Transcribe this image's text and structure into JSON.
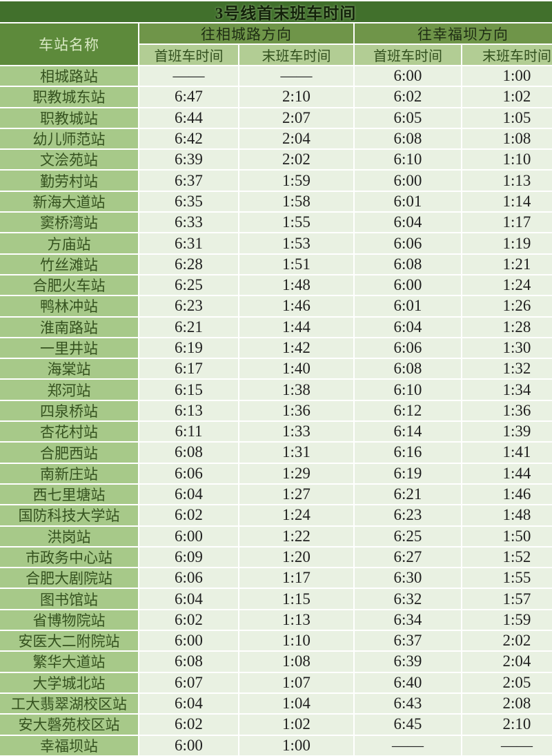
{
  "title": "3号线首末班车时间",
  "header": {
    "station_col": "车站名称",
    "directions": [
      {
        "label": "往相城路方向",
        "sub": [
          "首班车时间",
          "末班车时间"
        ]
      },
      {
        "label": "往幸福坝方向",
        "sub": [
          "首班车时间",
          "末班车时间"
        ]
      }
    ]
  },
  "colors": {
    "title_bg": "#41702c",
    "group_header_bg": "#6f9549",
    "corner_bg": "#5d8a3b",
    "subheader_bg": "#b2cd94",
    "station_bg": "#a7c989",
    "data_bg": "#e9f1e2",
    "grid_line": "#ffffff"
  },
  "rows": [
    {
      "station": "相城路站",
      "times": [
        "——",
        "——",
        "6:00",
        "1:00"
      ]
    },
    {
      "station": "职教城东站",
      "times": [
        "6:47",
        "2:10",
        "6:02",
        "1:02"
      ]
    },
    {
      "station": "职教城站",
      "times": [
        "6:44",
        "2:07",
        "6:05",
        "1:05"
      ]
    },
    {
      "station": "幼儿师范站",
      "times": [
        "6:42",
        "2:04",
        "6:08",
        "1:08"
      ]
    },
    {
      "station": "文浍苑站",
      "times": [
        "6:39",
        "2:02",
        "6:10",
        "1:10"
      ]
    },
    {
      "station": "勤劳村站",
      "times": [
        "6:37",
        "1:59",
        "6:00",
        "1:13"
      ]
    },
    {
      "station": "新海大道站",
      "times": [
        "6:35",
        "1:58",
        "6:01",
        "1:14"
      ]
    },
    {
      "station": "窦桥湾站",
      "times": [
        "6:33",
        "1:55",
        "6:04",
        "1:17"
      ]
    },
    {
      "station": "方庙站",
      "times": [
        "6:31",
        "1:53",
        "6:06",
        "1:19"
      ]
    },
    {
      "station": "竹丝滩站",
      "times": [
        "6:28",
        "1:51",
        "6:08",
        "1:21"
      ]
    },
    {
      "station": "合肥火车站",
      "times": [
        "6:25",
        "1:48",
        "6:00",
        "1:24"
      ]
    },
    {
      "station": "鸭林冲站",
      "times": [
        "6:23",
        "1:46",
        "6:01",
        "1:26"
      ]
    },
    {
      "station": "淮南路站",
      "times": [
        "6:21",
        "1:44",
        "6:04",
        "1:28"
      ]
    },
    {
      "station": "一里井站",
      "times": [
        "6:19",
        "1:42",
        "6:06",
        "1:30"
      ]
    },
    {
      "station": "海棠站",
      "times": [
        "6:17",
        "1:40",
        "6:08",
        "1:32"
      ]
    },
    {
      "station": "郑河站",
      "times": [
        "6:15",
        "1:38",
        "6:10",
        "1:34"
      ]
    },
    {
      "station": "四泉桥站",
      "times": [
        "6:13",
        "1:36",
        "6:12",
        "1:36"
      ]
    },
    {
      "station": "杏花村站",
      "times": [
        "6:11",
        "1:33",
        "6:14",
        "1:39"
      ]
    },
    {
      "station": "合肥西站",
      "times": [
        "6:08",
        "1:31",
        "6:16",
        "1:41"
      ]
    },
    {
      "station": "南新庄站",
      "times": [
        "6:06",
        "1:29",
        "6:19",
        "1:44"
      ]
    },
    {
      "station": "西七里塘站",
      "times": [
        "6:04",
        "1:27",
        "6:21",
        "1:46"
      ]
    },
    {
      "station": "国防科技大学站",
      "times": [
        "6:02",
        "1:24",
        "6:23",
        "1:48"
      ]
    },
    {
      "station": "洪岗站",
      "times": [
        "6:00",
        "1:22",
        "6:25",
        "1:50"
      ]
    },
    {
      "station": "市政务中心站",
      "times": [
        "6:09",
        "1:20",
        "6:27",
        "1:52"
      ]
    },
    {
      "station": "合肥大剧院站",
      "times": [
        "6:06",
        "1:17",
        "6:30",
        "1:55"
      ]
    },
    {
      "station": "图书馆站",
      "times": [
        "6:04",
        "1:15",
        "6:32",
        "1:57"
      ]
    },
    {
      "station": "省博物院站",
      "times": [
        "6:02",
        "1:13",
        "6:34",
        "1:59"
      ]
    },
    {
      "station": "安医大二附院站",
      "times": [
        "6:00",
        "1:10",
        "6:37",
        "2:02"
      ]
    },
    {
      "station": "繁华大道站",
      "times": [
        "6:08",
        "1:08",
        "6:39",
        "2:04"
      ]
    },
    {
      "station": "大学城北站",
      "times": [
        "6:07",
        "1:07",
        "6:40",
        "2:05"
      ]
    },
    {
      "station": "工大翡翠湖校区站",
      "times": [
        "6:04",
        "1:04",
        "6:43",
        "2:08"
      ]
    },
    {
      "station": "安大磬苑校区站",
      "times": [
        "6:02",
        "1:02",
        "6:45",
        "2:10"
      ]
    },
    {
      "station": "幸福坝站",
      "times": [
        "6:00",
        "1:00",
        "——",
        "——"
      ]
    }
  ]
}
